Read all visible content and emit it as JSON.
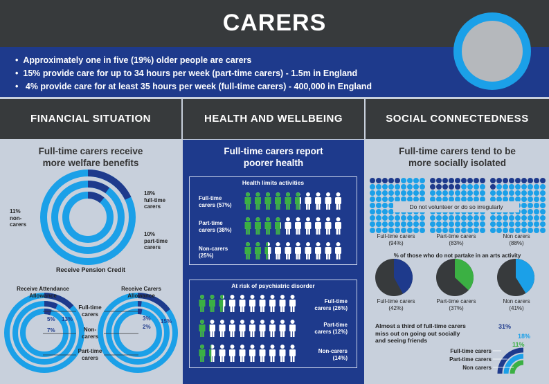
{
  "header": {
    "title": "CARERS"
  },
  "intro": {
    "bullets": [
      "Approximately one in five (19%) older people are carers",
      "15% provide care for up to 34 hours per week (part-time carers) - 1.5m in England",
      " 4% provide care for at least 35 hours per week (full-time carers) - 400,000 in England"
    ]
  },
  "sections": {
    "financial": "FINANCIAL SITUATION",
    "health": "HEALTH AND WELLBEING",
    "social": "SOCIAL CONNECTEDNESS"
  },
  "financial": {
    "subtitle_line1": "Full-time carers receive",
    "subtitle_line2": "more welfare benefits",
    "pension": {
      "caption": "Receive Pension Credit",
      "rings": [
        {
          "line1": "18%",
          "line2": "full-time",
          "line3": "carers",
          "value": 18
        },
        {
          "line1": "10%",
          "line2": "part-time",
          "line3": "carers",
          "value": 10
        },
        {
          "line1": "11%",
          "line2": "non-",
          "line3": "carers",
          "value": 11
        }
      ]
    },
    "attendance": {
      "caption_line1": "Receive Attendance",
      "caption_line2": "Allowance",
      "values": [
        13,
        5,
        7
      ],
      "labels": [
        "13%",
        "5%",
        "7%"
      ]
    },
    "carers_allowance": {
      "caption_line1": "Receive Carers",
      "caption_line2": "Allowance",
      "values": [
        15,
        3,
        2
      ],
      "labels": [
        "15%",
        "3%",
        "2%"
      ]
    },
    "legend": {
      "full_line1": "Full-time",
      "full_line2": "carers",
      "non_line1": "Non-",
      "non_line2": "carers",
      "part_line1": "Part-time",
      "part_line2": "carers"
    }
  },
  "health": {
    "subtitle_line1": "Full-time carers report",
    "subtitle_line2": "poorer health",
    "limits": {
      "title": "Health limits activities",
      "rows": [
        {
          "line1": "Full-time",
          "line2": "carers (57%)",
          "value": 57
        },
        {
          "line1": "Part-time",
          "line2": "carers (38%)",
          "value": 38
        },
        {
          "line1": "Non-carers",
          "line2": "(25%)",
          "value": 25
        }
      ]
    },
    "psychiatric": {
      "title": "At risk of psychiatric disorder",
      "rows": [
        {
          "line1": "Full-time",
          "line2": "carers (26%)",
          "value": 26
        },
        {
          "line1": "Part-time",
          "line2": "carers (12%)",
          "value": 12
        },
        {
          "line1": "Non-carers",
          "line2": "(14%)",
          "value": 14
        }
      ]
    }
  },
  "social": {
    "subtitle_line1": "Full-time carers tend to be",
    "subtitle_line2": "more socially isolated",
    "volunteer": {
      "banner": "Do not volunteer or do so irregularly",
      "groups": [
        {
          "line1": "Full-time carers",
          "line2": "(94%)",
          "value": 94
        },
        {
          "line1": "Part-time carers",
          "line2": "(83%)",
          "value": 83
        },
        {
          "line1": "Non carers",
          "line2": "(88%)",
          "value": 88
        }
      ]
    },
    "arts": {
      "title": "% of those who do not partake in an arts activity",
      "pies": [
        {
          "line1": "Full-time carers",
          "line2": "(42%)",
          "value": 42,
          "color": "#1e3a8c"
        },
        {
          "line1": "Part-time carers",
          "line2": "(37%)",
          "value": 37,
          "color": "#3bb043"
        },
        {
          "line1": "Non carers",
          "line2": "(41%)",
          "value": 41,
          "color": "#1ba0e8"
        }
      ]
    },
    "miss_out": {
      "text_line1": "Almost a third of full-time carers",
      "text_line2": "miss out on going out socially",
      "text_line3": "and seeing friends",
      "values": [
        31,
        18,
        11
      ],
      "labels": [
        "31%",
        "18%",
        "11%"
      ],
      "legend": [
        "Full-time carers",
        "Part-time carers",
        "Non carers"
      ]
    }
  },
  "colors": {
    "navy": "#1e3a8c",
    "cyan": "#1ba0e8",
    "green": "#3bb043",
    "dark": "#373a3c",
    "grey": "#c8d0dc"
  }
}
